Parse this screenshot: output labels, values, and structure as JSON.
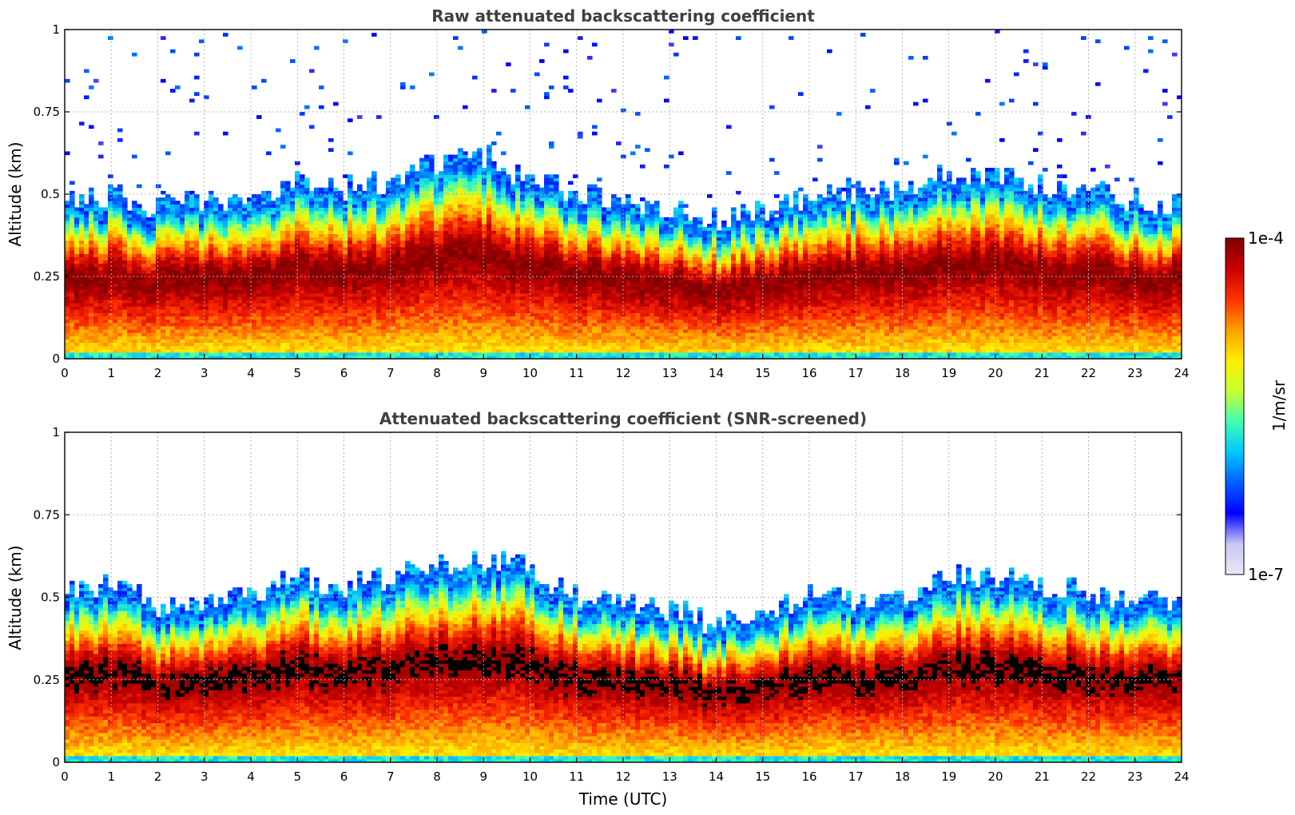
{
  "colormap": {
    "stops": [
      "#e8e8f8",
      "#c8c8f4",
      "#0000ff",
      "#0060ff",
      "#00c8ff",
      "#40ffb0",
      "#c8ff30",
      "#ffee00",
      "#ffa000",
      "#ff3000",
      "#c80000",
      "#800000"
    ],
    "masked_color": "#000000"
  },
  "chart_data": [
    {
      "type": "heatmap",
      "title": "Raw attenuated backscattering coefficient",
      "xlabel": "",
      "ylabel": "Altitude (km)",
      "xlim": [
        0,
        24
      ],
      "ylim": [
        0,
        1
      ],
      "xticks": [
        "0",
        "1",
        "2",
        "3",
        "4",
        "5",
        "6",
        "7",
        "8",
        "9",
        "10",
        "11",
        "12",
        "13",
        "14",
        "15",
        "16",
        "17",
        "18",
        "19",
        "20",
        "21",
        "22",
        "23",
        "24"
      ],
      "yticks": [
        "0",
        "0.25",
        "0.5",
        "0.75",
        "1"
      ],
      "grid": true,
      "hours": [
        0,
        1,
        2,
        3,
        4,
        5,
        6,
        7,
        8,
        9,
        10,
        11,
        12,
        13,
        14,
        15,
        16,
        17,
        18,
        19,
        20,
        21,
        22,
        23,
        24
      ],
      "layer_top_km": [
        0.43,
        0.46,
        0.42,
        0.44,
        0.45,
        0.5,
        0.48,
        0.5,
        0.55,
        0.58,
        0.5,
        0.46,
        0.44,
        0.42,
        0.38,
        0.42,
        0.46,
        0.47,
        0.48,
        0.53,
        0.52,
        0.49,
        0.47,
        0.44,
        0.44
      ],
      "sparse_noise_top_km": 1.0
    },
    {
      "type": "heatmap",
      "title": "Attenuated backscattering coefficient (SNR-screened)",
      "xlabel": "Time (UTC)",
      "ylabel": "Altitude (km)",
      "xlim": [
        0,
        24
      ],
      "ylim": [
        0,
        1
      ],
      "xticks": [
        "0",
        "1",
        "2",
        "3",
        "4",
        "5",
        "6",
        "7",
        "8",
        "9",
        "10",
        "11",
        "12",
        "13",
        "14",
        "15",
        "16",
        "17",
        "18",
        "19",
        "20",
        "21",
        "22",
        "23",
        "24"
      ],
      "yticks": [
        "0",
        "0.25",
        "0.5",
        "0.75",
        "1"
      ],
      "grid": true,
      "hours": [
        0,
        1,
        2,
        3,
        4,
        5,
        6,
        7,
        8,
        9,
        10,
        11,
        12,
        13,
        14,
        15,
        16,
        17,
        18,
        19,
        20,
        21,
        22,
        23,
        24
      ],
      "layer_top_km": [
        0.47,
        0.5,
        0.43,
        0.43,
        0.47,
        0.52,
        0.5,
        0.52,
        0.55,
        0.57,
        0.55,
        0.47,
        0.45,
        0.43,
        0.38,
        0.4,
        0.47,
        0.46,
        0.47,
        0.53,
        0.52,
        0.5,
        0.48,
        0.45,
        0.44
      ]
    }
  ],
  "colorbar": {
    "max_label": "1e-4",
    "min_label": "1e-7",
    "unit_label": "1/m/sr"
  }
}
